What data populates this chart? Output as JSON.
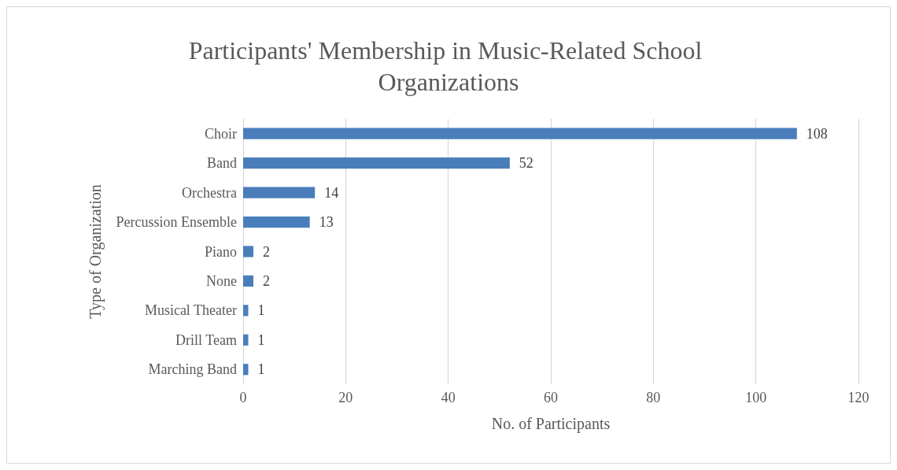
{
  "chart_data": {
    "type": "bar",
    "orientation": "horizontal",
    "title": "Participants' Membership in Music-Related School Organizations",
    "xlabel": "No. of Participants",
    "ylabel": "Type of Organization",
    "categories": [
      "Choir",
      "Band",
      "Orchestra",
      "Percussion Ensemble",
      "Piano",
      "None",
      "Musical Theater",
      "Drill Team",
      "Marching Band"
    ],
    "values": [
      108,
      52,
      14,
      13,
      2,
      2,
      1,
      1,
      1
    ],
    "color": "#4a7ebb",
    "xlim": [
      0,
      120
    ],
    "xticks": [
      0,
      20,
      40,
      60,
      80,
      100,
      120
    ],
    "grid": "x",
    "data_labels": true
  }
}
